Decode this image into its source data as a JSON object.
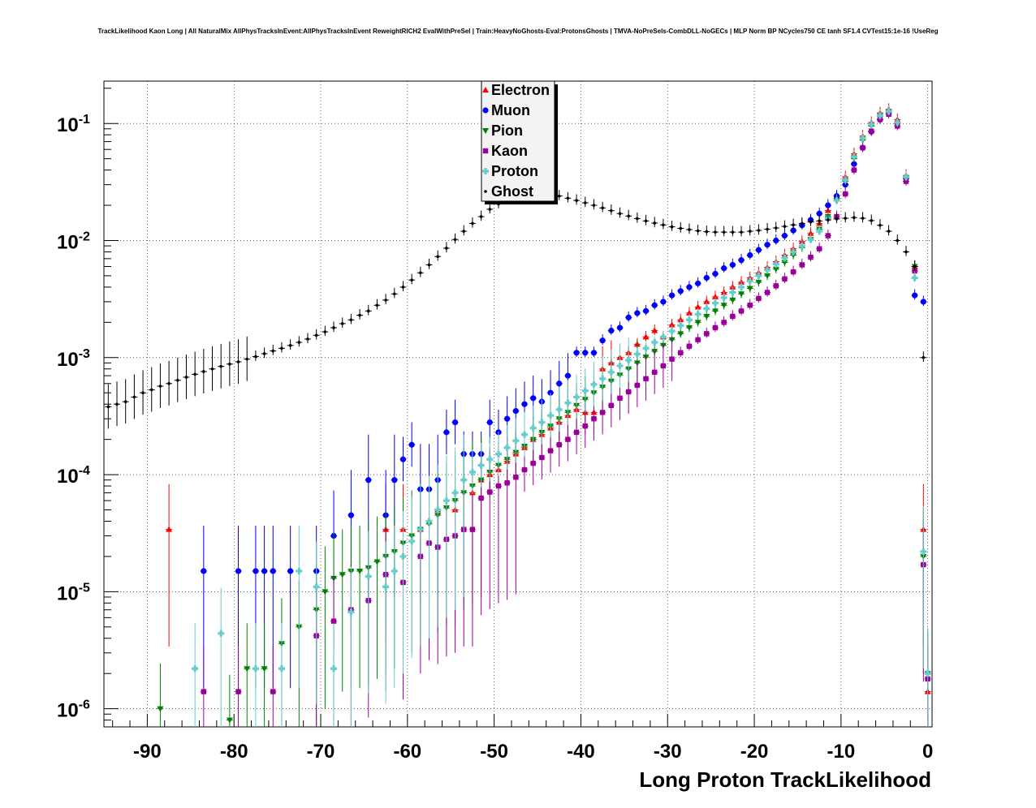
{
  "chart_data": {
    "type": "scatter",
    "title": "TrackLikelihood Kaon Long | All NaturalMix AllPhysTracksInEvent:AllPhysTracksInEvent ReweightRICH2 EvalWithPreSel | Train:HeavyNoGhosts-Eval:ProtonsGhosts | TMVA-NoPreSels-CombDLL-NoGECs | MLP Norm BP NCycles750 CE tanh SF1.4 CVTest15:1e-16 !UseReg",
    "xlabel": "Long Proton TrackLikelihood",
    "ylabel": "",
    "xlim": [
      -95,
      0.5
    ],
    "ylim": [
      7e-07,
      0.23
    ],
    "yscale": "log",
    "grid": true,
    "legend_position": "top-center",
    "xticks": [
      -90,
      -80,
      -70,
      -60,
      -50,
      -40,
      -30,
      -20,
      -10,
      0
    ],
    "xtick_labels": [
      "-90",
      "-80",
      "-70",
      "-60",
      "-50",
      "-40",
      "-30",
      "-20",
      "-10",
      "0"
    ],
    "yticks": [
      1e-06,
      1e-05,
      0.0001,
      0.001,
      0.01,
      0.1
    ],
    "ytick_mantissa": [
      "10",
      "10",
      "10",
      "10",
      "10",
      "10"
    ],
    "ytick_exponents": [
      "-6",
      "-5",
      "-4",
      "-3",
      "-2",
      "-1"
    ],
    "series": [
      {
        "name": "Electron",
        "color": "#ff0000",
        "marker": "triangle-up",
        "x": [
          -87.5,
          -62.5,
          -60.5,
          -58.5,
          -56.5,
          -54.5,
          -52.5,
          -51.5,
          -50.5,
          -49.5,
          -48.5,
          -47.5,
          -46.5,
          -45.5,
          -44.5,
          -43.5,
          -42.5,
          -41.5,
          -40.5,
          -39.5,
          -38.5,
          -37.5,
          -36.5,
          -35.5,
          -34.5,
          -33.5,
          -32.5,
          -31.5,
          -30.5,
          -29.5,
          -28.5,
          -27.5,
          -26.5,
          -25.5,
          -24.5,
          -23.5,
          -22.5,
          -21.5,
          -20.5,
          -19.5,
          -18.5,
          -17.5,
          -16.5,
          -15.5,
          -14.5,
          -13.5,
          -12.5,
          -11.5,
          -10.5,
          -9.5,
          -8.5,
          -7.5,
          -6.5,
          -5.5,
          -4.5,
          -3.5,
          -2.5,
          -1.5,
          -0.5,
          0.0
        ],
        "values": [
          3.4e-05,
          3.4e-05,
          3.4e-05,
          3.4e-05,
          5e-05,
          5e-05,
          7e-05,
          9e-05,
          0.0001,
          0.00011,
          0.00013,
          0.00015,
          0.00017,
          0.0002,
          0.00022,
          0.00025,
          0.00028,
          0.00032,
          0.00036,
          0.00034,
          0.00034,
          0.0008,
          0.0009,
          0.001,
          0.0011,
          0.0013,
          0.0015,
          0.0017,
          0.0015,
          0.0019,
          0.0021,
          0.0024,
          0.0027,
          0.003,
          0.0033,
          0.0036,
          0.004,
          0.0044,
          0.0048,
          0.0053,
          0.0059,
          0.0066,
          0.0075,
          0.0085,
          0.0098,
          0.0115,
          0.014,
          0.018,
          0.024,
          0.035,
          0.055,
          0.078,
          0.102,
          0.123,
          0.132,
          0.108,
          0.036,
          0.006,
          3.4e-05,
          1.4e-06
        ]
      },
      {
        "name": "Muon",
        "color": "#0000ff",
        "marker": "circle",
        "x": [
          -83.5,
          -79.5,
          -77.5,
          -76.5,
          -75.5,
          -73.5,
          -70.5,
          -68.5,
          -66.5,
          -64.5,
          -62.5,
          -61.5,
          -60.5,
          -59.5,
          -58.5,
          -57.5,
          -56.5,
          -55.5,
          -54.5,
          -53.5,
          -52.5,
          -51.5,
          -50.5,
          -49.5,
          -48.5,
          -47.5,
          -46.5,
          -45.5,
          -44.5,
          -43.5,
          -42.5,
          -41.5,
          -40.5,
          -39.5,
          -38.5,
          -37.5,
          -36.5,
          -35.5,
          -34.5,
          -33.5,
          -32.5,
          -31.5,
          -30.5,
          -29.5,
          -28.5,
          -27.5,
          -26.5,
          -25.5,
          -24.5,
          -23.5,
          -22.5,
          -21.5,
          -20.5,
          -19.5,
          -18.5,
          -17.5,
          -16.5,
          -15.5,
          -14.5,
          -13.5,
          -12.5,
          -11.5,
          -10.5,
          -9.5,
          -8.5,
          -7.5,
          -6.5,
          -5.5,
          -4.5,
          -3.5,
          -2.5,
          -1.5,
          -0.5
        ],
        "values": [
          1.5e-05,
          1.5e-05,
          1.5e-05,
          1.5e-05,
          1.5e-05,
          1.5e-05,
          1.5e-05,
          3e-05,
          4.5e-05,
          9e-05,
          4.5e-05,
          9e-05,
          0.000135,
          0.00018,
          7.5e-05,
          7.5e-05,
          9e-05,
          0.00023,
          0.00028,
          0.00015,
          0.00015,
          0.00015,
          0.00028,
          0.00023,
          0.0003,
          0.00035,
          0.0004,
          0.00045,
          0.00042,
          0.0005,
          0.0006,
          0.0007,
          0.0011,
          0.0011,
          0.0011,
          0.0014,
          0.0017,
          0.0018,
          0.0022,
          0.0024,
          0.0025,
          0.0028,
          0.003,
          0.0034,
          0.0037,
          0.004,
          0.0043,
          0.0048,
          0.0052,
          0.0058,
          0.0062,
          0.0068,
          0.0075,
          0.0083,
          0.0092,
          0.01,
          0.011,
          0.0122,
          0.0135,
          0.015,
          0.017,
          0.02,
          0.024,
          0.03,
          0.045,
          0.062,
          0.085,
          0.108,
          0.125,
          0.1,
          0.034,
          0.0034,
          0.003
        ]
      },
      {
        "name": "Pion",
        "color": "#008000",
        "marker": "triangle-down",
        "x": [
          -88.5,
          -80.5,
          -78.5,
          -76.5,
          -74.5,
          -72.5,
          -70.5,
          -69.5,
          -68.5,
          -67.5,
          -66.5,
          -65.5,
          -64.5,
          -63.5,
          -62.5,
          -61.5,
          -60.5,
          -59.5,
          -58.5,
          -57.5,
          -56.5,
          -55.5,
          -54.5,
          -53.5,
          -52.5,
          -51.5,
          -50.5,
          -49.5,
          -48.5,
          -47.5,
          -46.5,
          -45.5,
          -44.5,
          -43.5,
          -42.5,
          -41.5,
          -40.5,
          -39.5,
          -38.5,
          -37.5,
          -36.5,
          -35.5,
          -34.5,
          -33.5,
          -32.5,
          -31.5,
          -30.5,
          -29.5,
          -28.5,
          -27.5,
          -26.5,
          -25.5,
          -24.5,
          -23.5,
          -22.5,
          -21.5,
          -20.5,
          -19.5,
          -18.5,
          -17.5,
          -16.5,
          -15.5,
          -14.5,
          -13.5,
          -12.5,
          -11.5,
          -10.5,
          -9.5,
          -8.5,
          -7.5,
          -6.5,
          -5.5,
          -4.5,
          -3.5,
          -2.5,
          -1.5,
          -0.5,
          0.0
        ],
        "values": [
          1e-06,
          8e-07,
          2.2e-06,
          2.2e-06,
          3.6e-06,
          5e-06,
          7e-06,
          1e-05,
          1.3e-05,
          1.4e-05,
          1.5e-05,
          1.5e-05,
          1.6e-05,
          1.8e-05,
          2e-05,
          2.2e-05,
          2.6e-05,
          3e-05,
          3.4e-05,
          3.8e-05,
          4.5e-05,
          5.2e-05,
          6e-05,
          7e-05,
          8e-05,
          9e-05,
          0.000105,
          0.00012,
          0.000135,
          0.000155,
          0.000175,
          0.0002,
          0.00023,
          0.00026,
          0.0003,
          0.00034,
          0.00039,
          0.00044,
          0.0005,
          0.00056,
          0.00063,
          0.00071,
          0.0008,
          0.0009,
          0.00101,
          0.00113,
          0.00127,
          0.00142,
          0.0016,
          0.0018,
          0.002,
          0.00225,
          0.0025,
          0.0028,
          0.0031,
          0.0035,
          0.0039,
          0.0044,
          0.005,
          0.0057,
          0.0065,
          0.0075,
          0.0087,
          0.0102,
          0.0125,
          0.016,
          0.022,
          0.032,
          0.05,
          0.072,
          0.095,
          0.115,
          0.125,
          0.1,
          0.034,
          0.006,
          2e-05,
          2e-06
        ]
      },
      {
        "name": "Kaon",
        "color": "#990099",
        "marker": "square",
        "x": [
          -83.5,
          -79.5,
          -75.5,
          -70.5,
          -68.5,
          -66.5,
          -64.5,
          -62.5,
          -60.5,
          -58.5,
          -57.5,
          -56.5,
          -55.5,
          -54.5,
          -53.5,
          -52.5,
          -51.5,
          -50.5,
          -49.5,
          -48.5,
          -47.5,
          -46.5,
          -45.5,
          -44.5,
          -43.5,
          -42.5,
          -41.5,
          -40.5,
          -39.5,
          -38.5,
          -37.5,
          -36.5,
          -35.5,
          -34.5,
          -33.5,
          -32.5,
          -31.5,
          -30.5,
          -29.5,
          -28.5,
          -27.5,
          -26.5,
          -25.5,
          -24.5,
          -23.5,
          -22.5,
          -21.5,
          -20.5,
          -19.5,
          -18.5,
          -17.5,
          -16.5,
          -15.5,
          -14.5,
          -13.5,
          -12.5,
          -11.5,
          -10.5,
          -9.5,
          -8.5,
          -7.5,
          -6.5,
          -5.5,
          -4.5,
          -3.5,
          -2.5,
          -1.5,
          -0.5,
          0.0
        ],
        "values": [
          1.4e-06,
          1.4e-06,
          1.4e-06,
          4.2e-06,
          5.6e-06,
          7e-06,
          8.4e-06,
          1.4e-05,
          1.2e-05,
          2e-05,
          2.6e-05,
          2.4e-05,
          2.8e-05,
          3e-05,
          3.4e-05,
          3.4e-05,
          6.3e-05,
          7.1e-05,
          8e-05,
          8.5e-05,
          9.5e-05,
          0.00011,
          0.000125,
          0.00014,
          0.00016,
          0.00018,
          0.0002,
          0.00023,
          0.00026,
          0.0003,
          0.00034,
          0.00039,
          0.00045,
          0.00051,
          0.00058,
          0.00066,
          0.00075,
          0.00085,
          0.00097,
          0.0011,
          0.00125,
          0.00142,
          0.0016,
          0.0018,
          0.002,
          0.00225,
          0.0025,
          0.0028,
          0.0032,
          0.0036,
          0.0041,
          0.0047,
          0.0054,
          0.0062,
          0.0072,
          0.0085,
          0.011,
          0.016,
          0.025,
          0.04,
          0.062,
          0.086,
          0.108,
          0.12,
          0.095,
          0.032,
          0.0055,
          1.7e-05,
          1.8e-06
        ]
      },
      {
        "name": "Proton",
        "color": "#66cccc",
        "marker": "cross",
        "x": [
          -84.5,
          -81.5,
          -77.5,
          -74.5,
          -72.5,
          -70.5,
          -68.5,
          -66.5,
          -64.5,
          -62.5,
          -61.5,
          -60.5,
          -59.5,
          -58.5,
          -57.5,
          -56.5,
          -55.5,
          -54.5,
          -53.5,
          -52.5,
          -51.5,
          -50.5,
          -49.5,
          -48.5,
          -47.5,
          -46.5,
          -45.5,
          -44.5,
          -43.5,
          -42.5,
          -41.5,
          -40.5,
          -39.5,
          -38.5,
          -37.5,
          -36.5,
          -35.5,
          -34.5,
          -33.5,
          -32.5,
          -31.5,
          -30.5,
          -29.5,
          -28.5,
          -27.5,
          -26.5,
          -25.5,
          -24.5,
          -23.5,
          -22.5,
          -21.5,
          -20.5,
          -19.5,
          -18.5,
          -17.5,
          -16.5,
          -15.5,
          -14.5,
          -13.5,
          -12.5,
          -11.5,
          -10.5,
          -9.5,
          -8.5,
          -7.5,
          -6.5,
          -5.5,
          -4.5,
          -3.5,
          -2.5,
          -1.5,
          -0.5,
          0.0
        ],
        "values": [
          2.2e-06,
          4.4e-06,
          2.2e-06,
          2.2e-06,
          1.5e-05,
          1.1e-05,
          2.2e-06,
          6.7e-06,
          1.35e-05,
          1.1e-05,
          1.5e-05,
          2e-05,
          2.7e-05,
          3.4e-05,
          4e-05,
          5e-05,
          6e-05,
          7e-05,
          9e-05,
          0.000105,
          0.00012,
          0.000135,
          0.00015,
          0.00017,
          0.000195,
          0.00022,
          0.00025,
          0.00028,
          0.00032,
          0.00036,
          0.00041,
          0.00046,
          0.00052,
          0.00059,
          0.00066,
          0.00075,
          0.00085,
          0.00095,
          0.00107,
          0.0012,
          0.00135,
          0.0015,
          0.00168,
          0.00188,
          0.0021,
          0.00235,
          0.00262,
          0.00292,
          0.00325,
          0.0036,
          0.004,
          0.0045,
          0.005,
          0.0056,
          0.0063,
          0.0071,
          0.008,
          0.009,
          0.0102,
          0.012,
          0.0155,
          0.022,
          0.033,
          0.052,
          0.075,
          0.098,
          0.117,
          0.127,
          0.102,
          0.035,
          0.0048,
          2.2e-05,
          2e-06
        ]
      },
      {
        "name": "Ghost",
        "color": "#000000",
        "marker": "dot",
        "x": [
          -94.5,
          -93.5,
          -92.5,
          -91.5,
          -90.5,
          -89.5,
          -88.5,
          -87.5,
          -86.5,
          -85.5,
          -84.5,
          -83.5,
          -82.5,
          -81.5,
          -80.5,
          -79.5,
          -78.5,
          -77.5,
          -76.5,
          -75.5,
          -74.5,
          -73.5,
          -72.5,
          -71.5,
          -70.5,
          -69.5,
          -68.5,
          -67.5,
          -66.5,
          -65.5,
          -64.5,
          -63.5,
          -62.5,
          -61.5,
          -60.5,
          -59.5,
          -58.5,
          -57.5,
          -56.5,
          -55.5,
          -54.5,
          -53.5,
          -52.5,
          -51.5,
          -50.5,
          -49.5,
          -48.5,
          -47.5,
          -46.5,
          -45.5,
          -44.5,
          -43.5,
          -42.5,
          -41.5,
          -40.5,
          -39.5,
          -38.5,
          -37.5,
          -36.5,
          -35.5,
          -34.5,
          -33.5,
          -32.5,
          -31.5,
          -30.5,
          -29.5,
          -28.5,
          -27.5,
          -26.5,
          -25.5,
          -24.5,
          -23.5,
          -22.5,
          -21.5,
          -20.5,
          -19.5,
          -18.5,
          -17.5,
          -16.5,
          -15.5,
          -14.5,
          -13.5,
          -12.5,
          -11.5,
          -10.5,
          -9.5,
          -8.5,
          -7.5,
          -6.5,
          -5.5,
          -4.5,
          -3.5,
          -2.5,
          -1.5,
          -0.5
        ],
        "values": [
          0.00038,
          0.0004,
          0.00042,
          0.00046,
          0.0005,
          0.00053,
          0.00057,
          0.0006,
          0.00064,
          0.00068,
          0.00072,
          0.00076,
          0.0008,
          0.00084,
          0.00088,
          0.00092,
          0.00097,
          0.00102,
          0.00108,
          0.00114,
          0.0012,
          0.00127,
          0.00135,
          0.00144,
          0.00155,
          0.00166,
          0.0018,
          0.00195,
          0.0021,
          0.0023,
          0.0025,
          0.0028,
          0.0031,
          0.0035,
          0.004,
          0.0046,
          0.0053,
          0.0062,
          0.0073,
          0.0086,
          0.0102,
          0.012,
          0.014,
          0.016,
          0.0185,
          0.0205,
          0.0225,
          0.024,
          0.025,
          0.0255,
          0.0255,
          0.025,
          0.024,
          0.023,
          0.022,
          0.021,
          0.02,
          0.019,
          0.018,
          0.017,
          0.0162,
          0.0154,
          0.0147,
          0.0141,
          0.0136,
          0.0131,
          0.0127,
          0.0124,
          0.0121,
          0.0119,
          0.0118,
          0.0118,
          0.0118,
          0.0118,
          0.012,
          0.0122,
          0.0125,
          0.0128,
          0.0132,
          0.0136,
          0.014,
          0.0144,
          0.0147,
          0.015,
          0.0153,
          0.0155,
          0.0157,
          0.0155,
          0.0148,
          0.0135,
          0.012,
          0.01,
          0.008,
          0.006,
          0.001
        ]
      }
    ]
  }
}
